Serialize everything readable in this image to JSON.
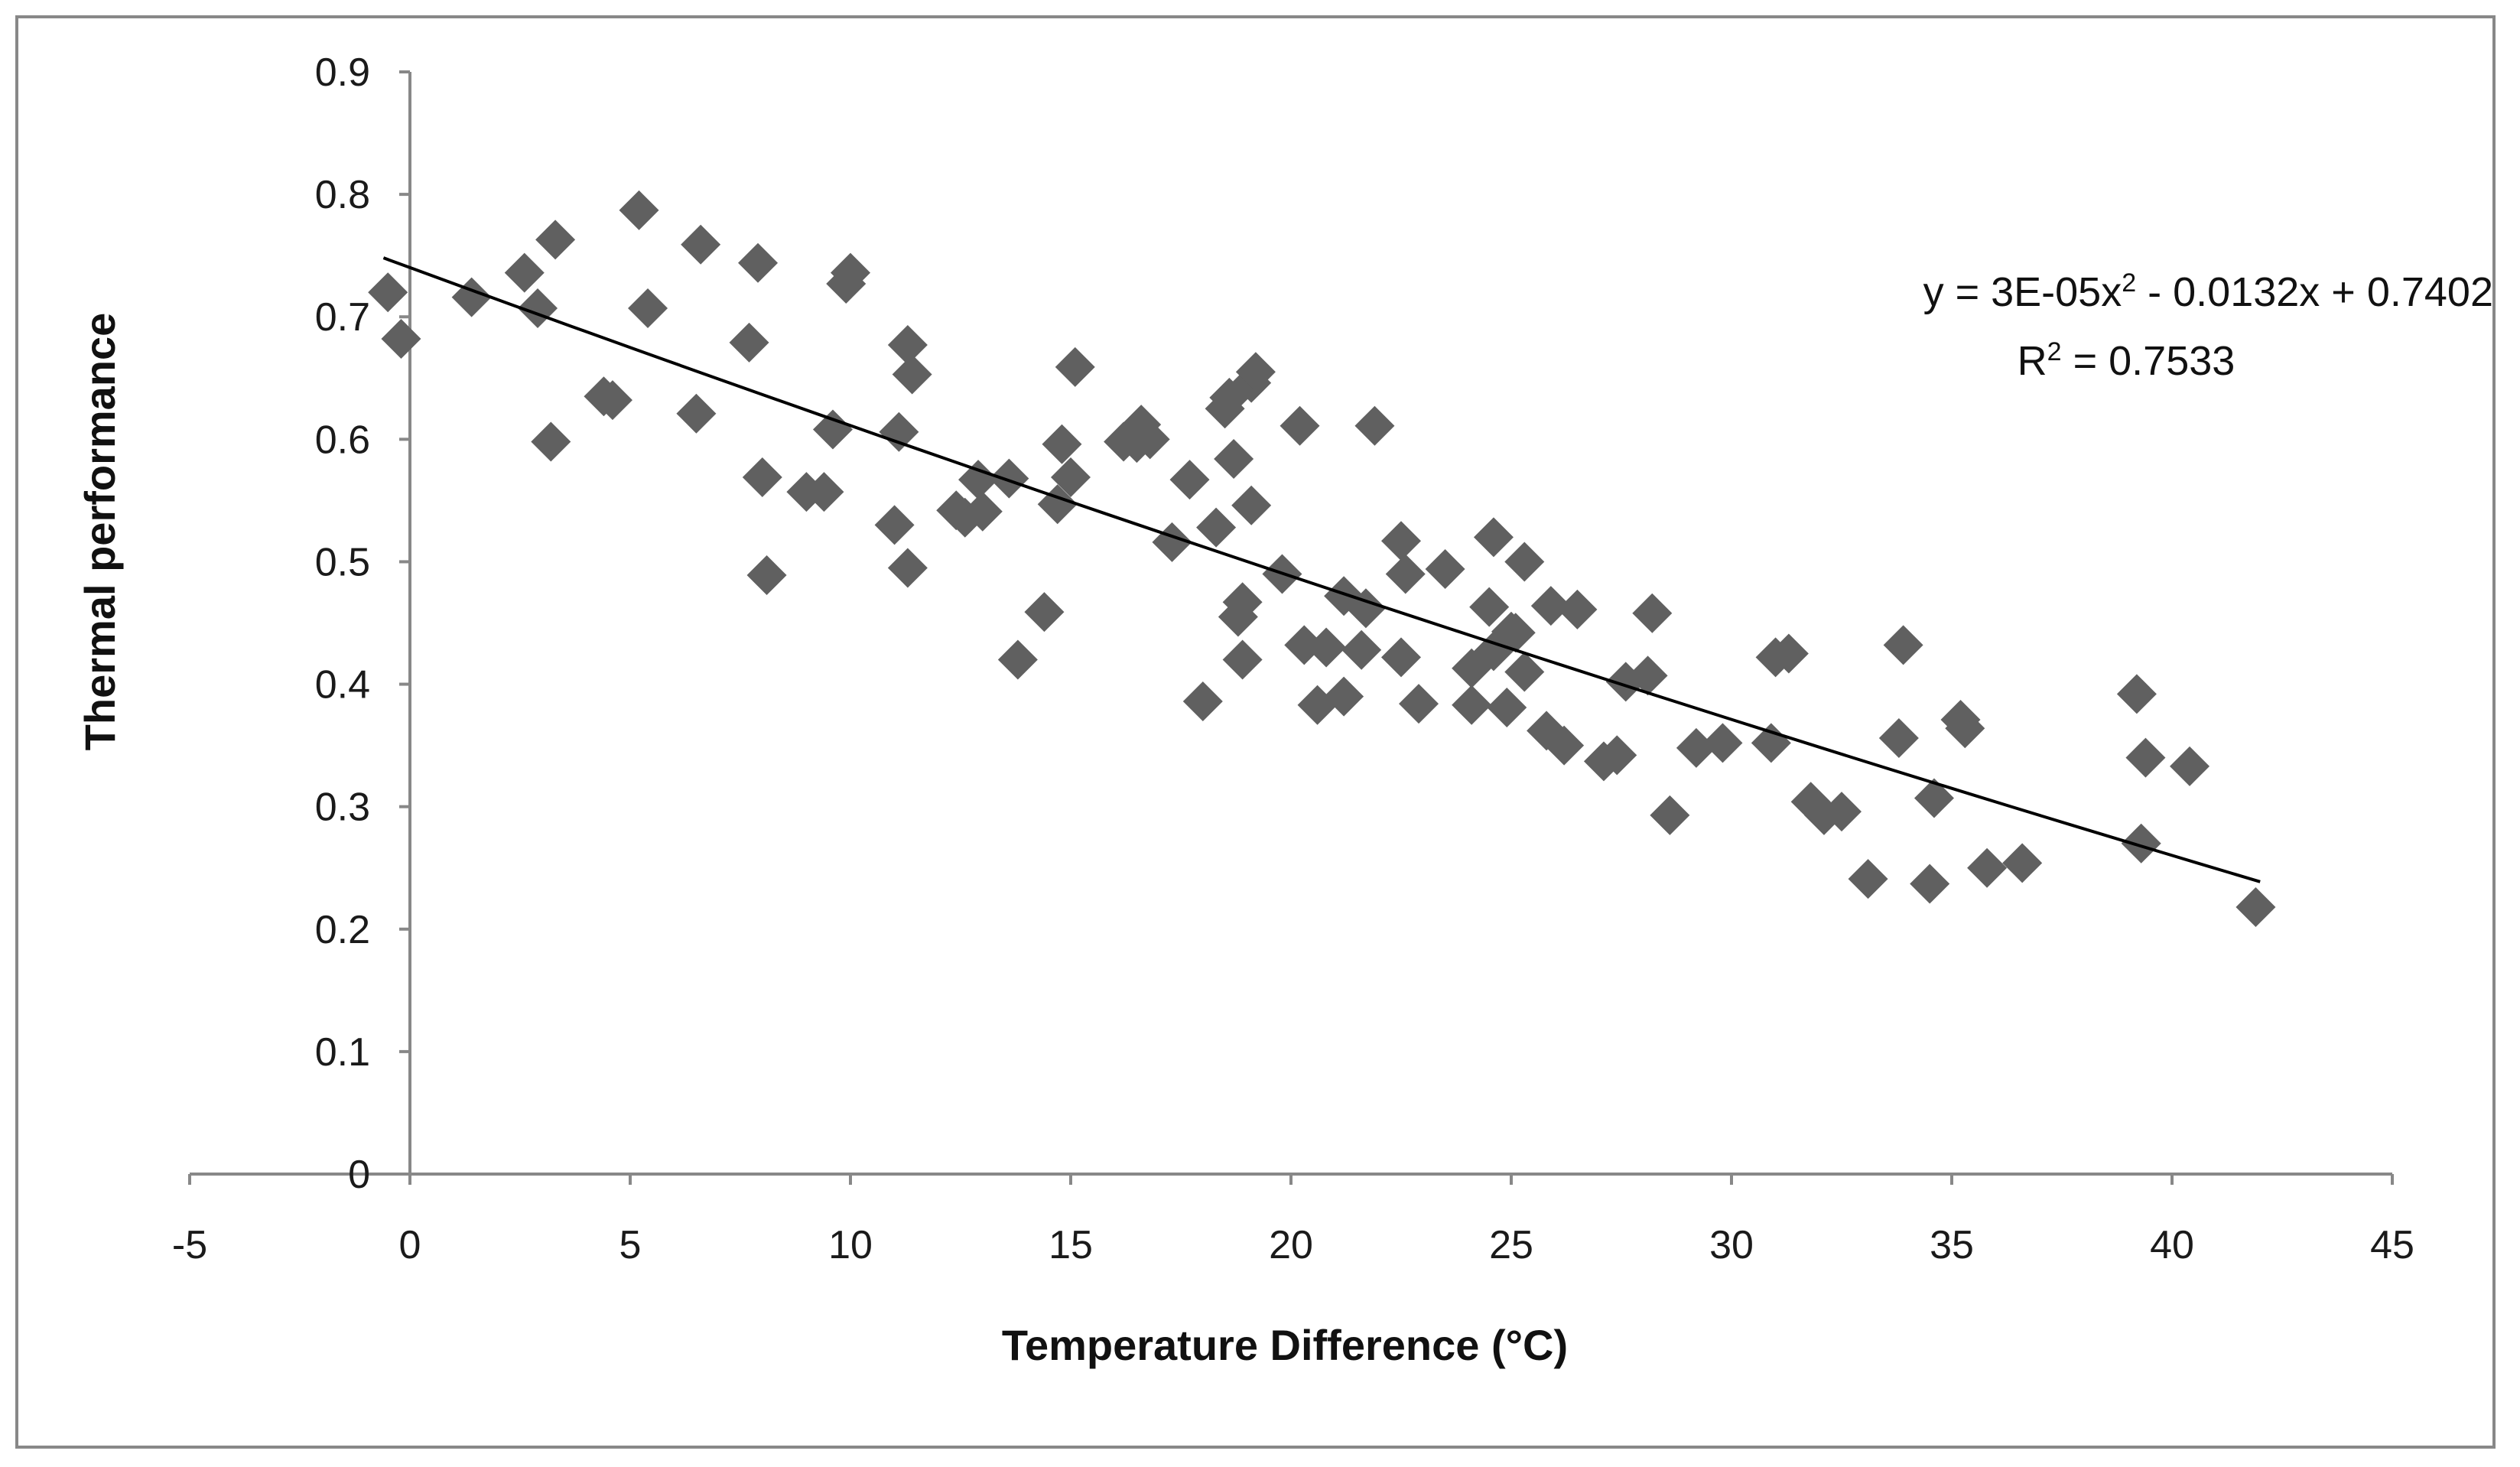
{
  "chart_data": {
    "type": "scatter",
    "title": "",
    "xlabel": "Temperature Difference (°C)",
    "ylabel": "Thermal performance",
    "xlim": [
      -5,
      45
    ],
    "ylim": [
      0,
      0.9
    ],
    "x_ticks": [
      "-5",
      "0",
      "5",
      "10",
      "15",
      "20",
      "25",
      "30",
      "35",
      "40",
      "45"
    ],
    "y_ticks": [
      "0",
      "0.1",
      "0.2",
      "0.3",
      "0.4",
      "0.5",
      "0.6",
      "0.7",
      "0.8",
      "0.9"
    ],
    "grid": false,
    "legend": null,
    "marker": "diamond",
    "marker_color": "#606060",
    "line_color": "#000000",
    "axis_color": "#888888",
    "trendline": {
      "type": "polynomial",
      "order": 2,
      "coefficients": {
        "a": 3e-05,
        "b": -0.0132,
        "c": 0.7402
      },
      "x_range": [
        -0.6,
        42
      ],
      "equation_prefix": "y = 3E-05x",
      "equation_suffix": " - 0.0132x + 0.7402",
      "r2_prefix": "R",
      "r2_suffix": " = 0.7533",
      "superscript": "2"
    },
    "series": [
      {
        "name": "Thermal performance",
        "points": [
          [
            -0.5,
            0.72
          ],
          [
            -0.2,
            0.682
          ],
          [
            1.4,
            0.716
          ],
          [
            2.6,
            0.736
          ],
          [
            2.9,
            0.707
          ],
          [
            3.2,
            0.598
          ],
          [
            3.3,
            0.763
          ],
          [
            4.4,
            0.635
          ],
          [
            4.6,
            0.632
          ],
          [
            5.2,
            0.787
          ],
          [
            5.4,
            0.707
          ],
          [
            6.5,
            0.621
          ],
          [
            6.6,
            0.759
          ],
          [
            7.7,
            0.679
          ],
          [
            7.9,
            0.744
          ],
          [
            8.0,
            0.569
          ],
          [
            8.1,
            0.489
          ],
          [
            9.0,
            0.557
          ],
          [
            9.4,
            0.557
          ],
          [
            9.6,
            0.608
          ],
          [
            9.9,
            0.727
          ],
          [
            10.0,
            0.736
          ],
          [
            11.0,
            0.53
          ],
          [
            11.1,
            0.606
          ],
          [
            11.3,
            0.677
          ],
          [
            11.3,
            0.495
          ],
          [
            11.4,
            0.653
          ],
          [
            12.4,
            0.542
          ],
          [
            12.6,
            0.536
          ],
          [
            12.9,
            0.567
          ],
          [
            13.0,
            0.541
          ],
          [
            13.6,
            0.568
          ],
          [
            13.8,
            0.42
          ],
          [
            14.4,
            0.459
          ],
          [
            14.7,
            0.547
          ],
          [
            14.8,
            0.596
          ],
          [
            15.0,
            0.569
          ],
          [
            15.1,
            0.659
          ],
          [
            16.2,
            0.598
          ],
          [
            16.5,
            0.597
          ],
          [
            16.6,
            0.612
          ],
          [
            16.8,
            0.6
          ],
          [
            17.3,
            0.516
          ],
          [
            17.7,
            0.567
          ],
          [
            18.0,
            0.386
          ],
          [
            18.3,
            0.528
          ],
          [
            18.5,
            0.625
          ],
          [
            18.6,
            0.634
          ],
          [
            18.7,
            0.584
          ],
          [
            18.8,
            0.455
          ],
          [
            18.9,
            0.467
          ],
          [
            18.9,
            0.42
          ],
          [
            19.1,
            0.546
          ],
          [
            19.1,
            0.646
          ],
          [
            19.2,
            0.655
          ],
          [
            19.8,
            0.49
          ],
          [
            20.2,
            0.611
          ],
          [
            20.3,
            0.432
          ],
          [
            20.6,
            0.383
          ],
          [
            20.8,
            0.43
          ],
          [
            21.2,
            0.39
          ],
          [
            21.2,
            0.472
          ],
          [
            21.6,
            0.428
          ],
          [
            21.7,
            0.462
          ],
          [
            21.9,
            0.611
          ],
          [
            22.5,
            0.422
          ],
          [
            22.5,
            0.517
          ],
          [
            22.6,
            0.49
          ],
          [
            22.9,
            0.384
          ],
          [
            23.5,
            0.494
          ],
          [
            24.1,
            0.383
          ],
          [
            24.1,
            0.413
          ],
          [
            24.5,
            0.463
          ],
          [
            24.6,
            0.427
          ],
          [
            24.6,
            0.52
          ],
          [
            24.9,
            0.381
          ],
          [
            25.0,
            0.443
          ],
          [
            25.1,
            0.442
          ],
          [
            25.3,
            0.41
          ],
          [
            25.3,
            0.5
          ],
          [
            25.8,
            0.362
          ],
          [
            25.9,
            0.464
          ],
          [
            26.2,
            0.35
          ],
          [
            26.5,
            0.461
          ],
          [
            27.1,
            0.337
          ],
          [
            27.4,
            0.342
          ],
          [
            27.6,
            0.402
          ],
          [
            28.1,
            0.407
          ],
          [
            28.2,
            0.458
          ],
          [
            28.6,
            0.293
          ],
          [
            29.2,
            0.348
          ],
          [
            29.8,
            0.352
          ],
          [
            30.9,
            0.352
          ],
          [
            31.0,
            0.422
          ],
          [
            31.3,
            0.425
          ],
          [
            31.8,
            0.304
          ],
          [
            32.1,
            0.293
          ],
          [
            32.5,
            0.296
          ],
          [
            33.1,
            0.241
          ],
          [
            33.8,
            0.356
          ],
          [
            33.9,
            0.432
          ],
          [
            34.5,
            0.237
          ],
          [
            34.6,
            0.307
          ],
          [
            35.2,
            0.371
          ],
          [
            35.3,
            0.364
          ],
          [
            35.8,
            0.25
          ],
          [
            36.6,
            0.254
          ],
          [
            39.2,
            0.392
          ],
          [
            39.3,
            0.27
          ],
          [
            39.4,
            0.34
          ],
          [
            40.4,
            0.333
          ],
          [
            41.9,
            0.218
          ]
        ]
      }
    ]
  }
}
